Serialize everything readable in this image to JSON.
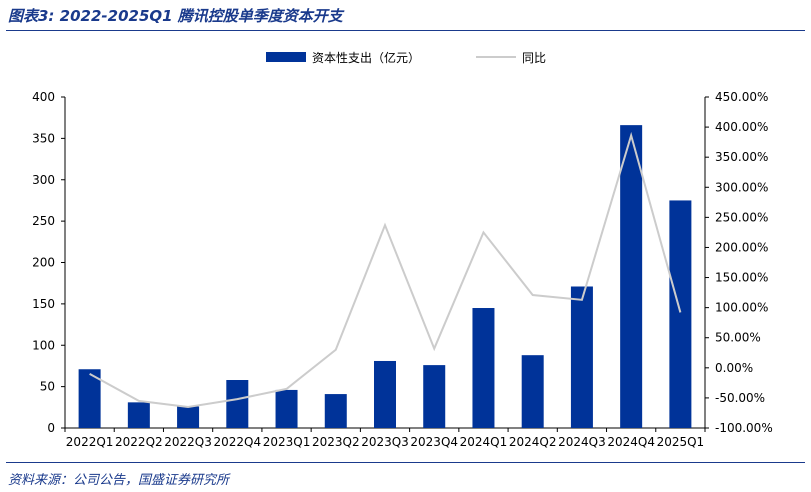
{
  "figure_title": "图表3:  2022-2025Q1 腾讯控股单季度资本开支",
  "source": "资料来源：公司公告，国盛证券研究所",
  "colors": {
    "bar": "#003399",
    "line": "#cccccc",
    "accent": "#1a3a8c"
  },
  "chart_data": {
    "type": "bar+line",
    "categories": [
      "2022Q1",
      "2022Q2",
      "2022Q3",
      "2022Q4",
      "2023Q1",
      "2023Q2",
      "2023Q3",
      "2023Q4",
      "2024Q1",
      "2024Q2",
      "2024Q3",
      "2024Q4",
      "2025Q1"
    ],
    "series": [
      {
        "name": "资本性支出（亿元）",
        "type": "bar",
        "axis": "left",
        "values": [
          71,
          31,
          26,
          58,
          46,
          41,
          81,
          76,
          145,
          88,
          171,
          366,
          275
        ]
      },
      {
        "name": "同比",
        "type": "line",
        "axis": "right",
        "values": [
          -10,
          -55,
          -65,
          -52,
          -35,
          30,
          237,
          32,
          225,
          121,
          113,
          386,
          92
        ]
      }
    ],
    "y_left": {
      "min": 0,
      "max": 400,
      "step": 50,
      "ticks": [
        "0",
        "50",
        "100",
        "150",
        "200",
        "250",
        "300",
        "350",
        "400"
      ]
    },
    "y_right": {
      "min": -100,
      "max": 450,
      "step": 50,
      "ticks": [
        "-100.00%",
        "-50.00%",
        "0.00%",
        "50.00%",
        "100.00%",
        "150.00%",
        "200.00%",
        "250.00%",
        "300.00%",
        "350.00%",
        "400.00%",
        "450.00%"
      ]
    },
    "legend_position": "top-center",
    "grid": false
  }
}
